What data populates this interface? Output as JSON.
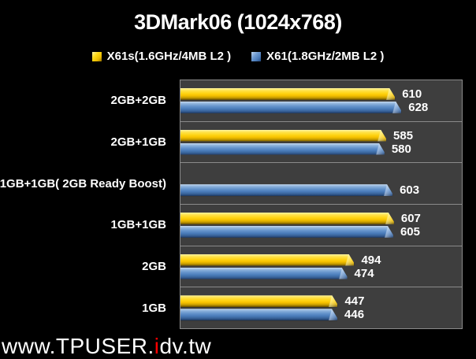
{
  "title": "3DMark06 (1024x768)",
  "legend": [
    {
      "label": "X61s(1.6GHz/4MB L2 )",
      "color": "#FFD312"
    },
    {
      "label": "X61(1.8GHz/2MB L2 )",
      "color": "#4A7CBA"
    }
  ],
  "watermark": {
    "prefix": "www.TPUSER.",
    "accent": "i",
    "suffix": "dv.tw"
  },
  "colors": {
    "page_bg": "#000000",
    "plot_bg": "#3E3E3E",
    "plot_border": "#8A8A8A",
    "text": "#FFFFFF",
    "series_yellow": "#FFD312",
    "series_blue": "#4A7CBA",
    "watermark_accent": "#FF0000"
  },
  "chart_data": {
    "type": "bar",
    "orientation": "horizontal",
    "title": "3DMark06 (1024x768)",
    "categories": [
      "2GB+2GB",
      "2GB+1GB",
      "1GB+1GB( 2GB Ready Boost)",
      "1GB+1GB",
      "2GB",
      "1GB"
    ],
    "series": [
      {
        "name": "X61s(1.6GHz/4MB L2 )",
        "color": "#FFD312",
        "values": [
          610,
          585,
          null,
          607,
          494,
          447
        ]
      },
      {
        "name": "X61(1.8GHz/2MB L2 )",
        "color": "#4A7CBA",
        "values": [
          628,
          580,
          603,
          605,
          474,
          446
        ]
      }
    ],
    "xlim": [
      0,
      800
    ],
    "grid": false,
    "gridlines": "category-dividers-only",
    "legend_position": "top",
    "value_labels": "end-of-bar"
  }
}
